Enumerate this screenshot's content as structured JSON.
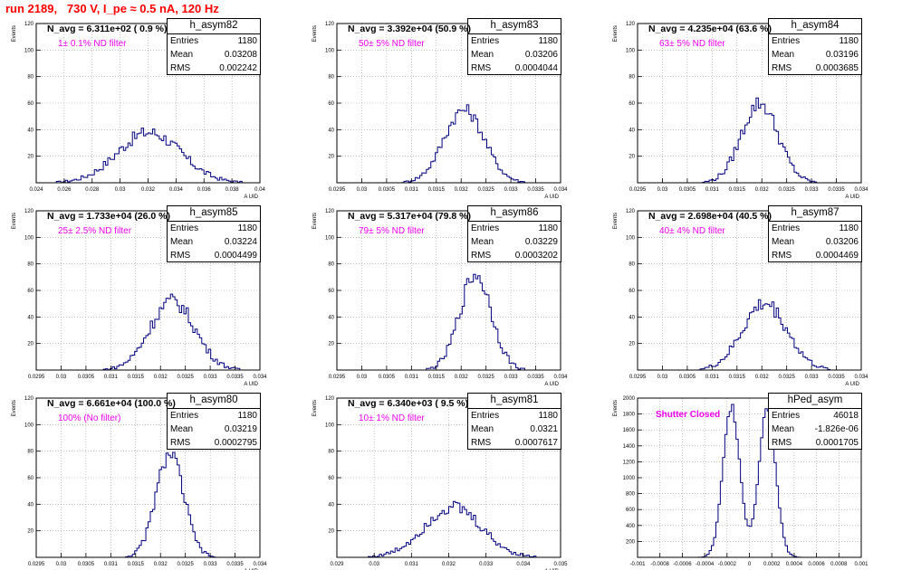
{
  "page_title": "run 2189,   730 V, I_pe ≈ 0.5 nA, 120 Hz",
  "colors": {
    "hist_line": "#00007f",
    "title": "#ff0000",
    "filter_label": "#ee00ee",
    "grid": "#9a9a9a"
  },
  "chart_data": [
    {
      "type": "histogram",
      "name": "h_asym82",
      "navg_label": "N_avg = 6.311e+02 ( 0.9 %)",
      "filter_label": "1± 0.1% ND filter",
      "stats": {
        "entries": "1180",
        "mean": "0.03208",
        "rms": "0.002242"
      },
      "ylabel": "Events",
      "xlabel": "A UID",
      "xlim": [
        0.024,
        0.04
      ],
      "ylim": [
        0,
        120
      ],
      "xticks": [
        "0.024",
        "0.026",
        "0.028",
        "0.03",
        "0.032",
        "0.034",
        "0.036",
        "0.038",
        "0.04"
      ],
      "yticks": [
        "20",
        "40",
        "60",
        "80",
        "100",
        "120"
      ],
      "grid": true,
      "profile": {
        "mean": 0.03208,
        "rms": 0.002242,
        "peak": 38,
        "noise": 5
      }
    },
    {
      "type": "histogram",
      "name": "h_asym83",
      "navg_label": "N_avg = 3.392e+04 (50.9 %)",
      "filter_label": "50± 5% ND filter",
      "stats": {
        "entries": "1180",
        "mean": "0.03206",
        "rms": "0.0004044"
      },
      "ylabel": "Events",
      "xlabel": "A UID",
      "xlim": [
        0.0295,
        0.034
      ],
      "ylim": [
        0,
        120
      ],
      "xticks": [
        "0.0295",
        "0.03",
        "0.0305",
        "0.031",
        "0.0315",
        "0.032",
        "0.0325",
        "0.033",
        "0.0335",
        "0.034"
      ],
      "yticks": [
        "20",
        "40",
        "60",
        "80",
        "100",
        "120"
      ],
      "grid": true,
      "profile": {
        "mean": 0.03206,
        "rms": 0.0004044,
        "peak": 55,
        "noise": 5
      }
    },
    {
      "type": "histogram",
      "name": "h_asym84",
      "navg_label": "N_avg = 4.235e+04 (63.6 %)",
      "filter_label": "63± 5% ND filter",
      "stats": {
        "entries": "1180",
        "mean": "0.03196",
        "rms": "0.0003685"
      },
      "ylabel": "Events",
      "xlabel": "A UID",
      "xlim": [
        0.0295,
        0.034
      ],
      "ylim": [
        0,
        120
      ],
      "xticks": [
        "0.0295",
        "0.03",
        "0.0305",
        "0.031",
        "0.0315",
        "0.032",
        "0.0325",
        "0.033",
        "0.0335",
        "0.034"
      ],
      "yticks": [
        "20",
        "40",
        "60",
        "80",
        "100",
        "120"
      ],
      "grid": true,
      "profile": {
        "mean": 0.03196,
        "rms": 0.0003685,
        "peak": 60,
        "noise": 6
      }
    },
    {
      "type": "histogram",
      "name": "h_asym85",
      "navg_label": "N_avg = 1.733e+04 (26.0 %)",
      "filter_label": "25± 2.5% ND filter",
      "stats": {
        "entries": "1180",
        "mean": "0.03224",
        "rms": "0.0004499"
      },
      "ylabel": "Events",
      "xlabel": "A UID",
      "xlim": [
        0.0295,
        0.034
      ],
      "ylim": [
        0,
        120
      ],
      "xticks": [
        "0.0295",
        "0.03",
        "0.0305",
        "0.031",
        "0.0315",
        "0.032",
        "0.0325",
        "0.033",
        "0.0335",
        "0.034"
      ],
      "yticks": [
        "20",
        "40",
        "60",
        "80",
        "100",
        "120"
      ],
      "grid": true,
      "profile": {
        "mean": 0.03224,
        "rms": 0.0004499,
        "peak": 52,
        "noise": 6
      }
    },
    {
      "type": "histogram",
      "name": "h_asym86",
      "navg_label": "N_avg = 5.317e+04 (79.8 %)",
      "filter_label": "79± 5% ND filter",
      "stats": {
        "entries": "1180",
        "mean": "0.03229",
        "rms": "0.0003202"
      },
      "ylabel": "Events",
      "xlabel": "A UID",
      "xlim": [
        0.0295,
        0.034
      ],
      "ylim": [
        0,
        120
      ],
      "xticks": [
        "0.0295",
        "0.03",
        "0.0305",
        "0.031",
        "0.0315",
        "0.032",
        "0.0325",
        "0.033",
        "0.0335",
        "0.034"
      ],
      "yticks": [
        "20",
        "40",
        "60",
        "80",
        "100",
        "120"
      ],
      "grid": true,
      "profile": {
        "mean": 0.03229,
        "rms": 0.0003202,
        "peak": 72,
        "noise": 7
      }
    },
    {
      "type": "histogram",
      "name": "h_asym87",
      "navg_label": "N_avg = 2.698e+04 (40.5 %)",
      "filter_label": "40± 4% ND filter",
      "stats": {
        "entries": "1180",
        "mean": "0.03206",
        "rms": "0.0004469"
      },
      "ylabel": "Events",
      "xlabel": "A UID",
      "xlim": [
        0.0295,
        0.034
      ],
      "ylim": [
        0,
        120
      ],
      "xticks": [
        "0.0295",
        "0.03",
        "0.0305",
        "0.031",
        "0.0315",
        "0.032",
        "0.0325",
        "0.033",
        "0.0335",
        "0.034"
      ],
      "yticks": [
        "20",
        "40",
        "60",
        "80",
        "100",
        "120"
      ],
      "grid": true,
      "profile": {
        "mean": 0.03206,
        "rms": 0.0004469,
        "peak": 50,
        "noise": 6
      }
    },
    {
      "type": "histogram",
      "name": "h_asym80",
      "navg_label": "N_avg = 6.661e+04 (100.0 %)",
      "filter_label": "100% (No filter)",
      "stats": {
        "entries": "1180",
        "mean": "0.03219",
        "rms": "0.0002795"
      },
      "ylabel": "Events",
      "xlabel": "A UID",
      "xlim": [
        0.0295,
        0.034
      ],
      "ylim": [
        0,
        120
      ],
      "xticks": [
        "0.0295",
        "0.03",
        "0.0305",
        "0.031",
        "0.0315",
        "0.032",
        "0.0325",
        "0.033",
        "0.0335",
        "0.034"
      ],
      "yticks": [
        "20",
        "40",
        "60",
        "80",
        "100",
        "120"
      ],
      "grid": true,
      "profile": {
        "mean": 0.03219,
        "rms": 0.0002795,
        "peak": 78,
        "noise": 6
      }
    },
    {
      "type": "histogram",
      "name": "h_asym81",
      "navg_label": "N_avg = 6.340e+03 ( 9.5 %)",
      "filter_label": "10± 1% ND filter",
      "stats": {
        "entries": "1180",
        "mean": "0.0321",
        "rms": "0.0007617"
      },
      "ylabel": "Events",
      "xlabel": "A UID",
      "xlim": [
        0.029,
        0.035
      ],
      "ylim": [
        0,
        120
      ],
      "xticks": [
        "0.029",
        "0.03",
        "0.031",
        "0.032",
        "0.033",
        "0.034",
        "0.035"
      ],
      "yticks": [
        "20",
        "40",
        "60",
        "80",
        "100",
        "120"
      ],
      "grid": true,
      "profile": {
        "mean": 0.0321,
        "rms": 0.0007617,
        "peak": 38,
        "noise": 5
      }
    },
    {
      "type": "histogram",
      "name": "hPed_asym",
      "navg_label": "",
      "filter_label": "Shutter Closed",
      "stats": {
        "entries": "46018",
        "mean": "-1.826e-06",
        "rms": "0.0001705"
      },
      "ylabel": "Events",
      "xlabel": "",
      "xlim": [
        -0.001,
        0.001
      ],
      "ylim": [
        0,
        2000
      ],
      "xticks": [
        "-0.001",
        "-0.0008",
        "-0.0006",
        "-0.0004",
        "-0.0002",
        "0",
        "0.0002",
        "0.0004",
        "0.0006",
        "0.0008",
        "0.001"
      ],
      "yticks": [
        "200",
        "400",
        "600",
        "800",
        "1000",
        "1200",
        "1400",
        "1600",
        "1800",
        "2000"
      ],
      "grid": true,
      "profile": {
        "double_peak": true,
        "peak_centers": [
          -0.00016,
          0.00016
        ],
        "peak_width": 7.5e-05,
        "peak": 1900,
        "noise": 60
      }
    }
  ]
}
